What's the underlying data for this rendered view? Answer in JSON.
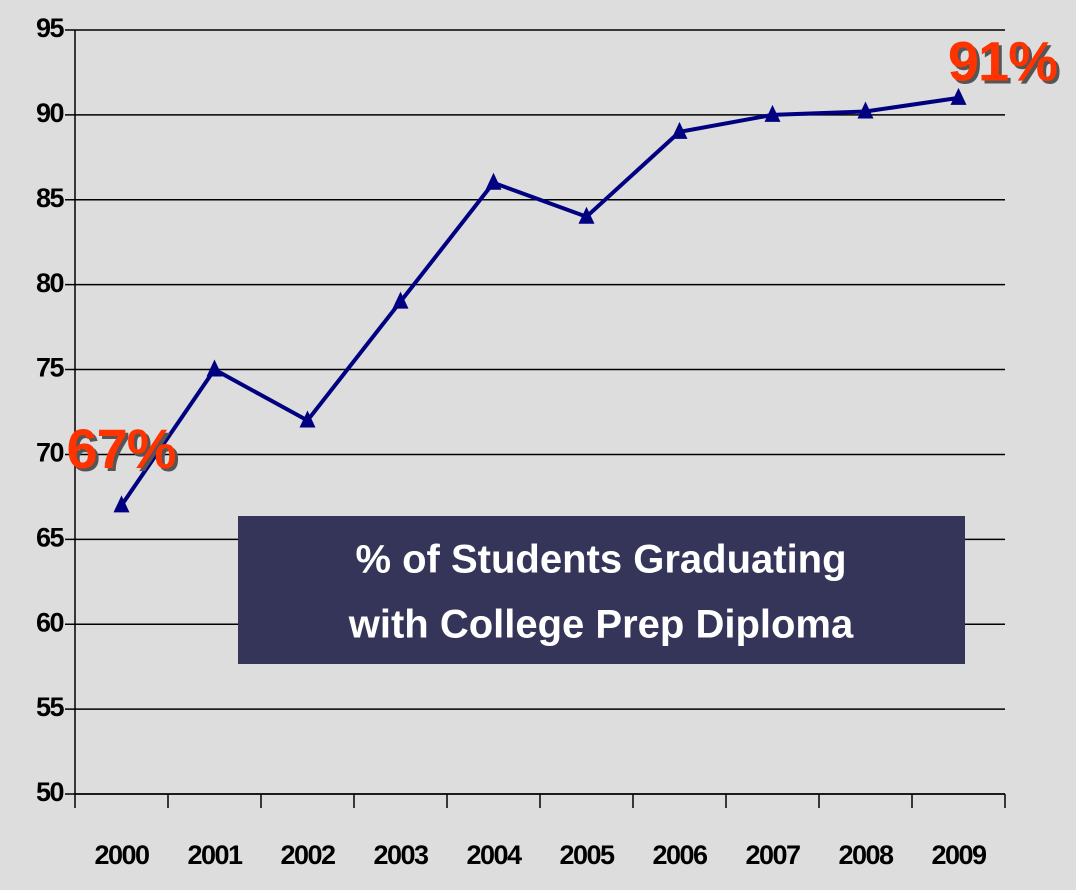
{
  "chart_data": {
    "type": "line",
    "title": [
      "% of  Students Graduating",
      "with College Prep Diploma"
    ],
    "categories": [
      "2000",
      "2001",
      "2002",
      "2003",
      "2004",
      "2005",
      "2006",
      "2007",
      "2008",
      "2009"
    ],
    "series": [
      {
        "color": "#000080",
        "values": [
          67,
          75,
          72,
          79,
          86,
          84,
          89,
          90,
          90.2,
          91
        ],
        "value_labels": [
          "67%",
          null,
          null,
          null,
          null,
          null,
          null,
          null,
          null,
          "91%"
        ]
      }
    ],
    "ylim": [
      50,
      95
    ],
    "yticks": [
      50,
      55,
      60,
      65,
      70,
      75,
      80,
      85,
      90,
      95
    ],
    "grid": true
  }
}
